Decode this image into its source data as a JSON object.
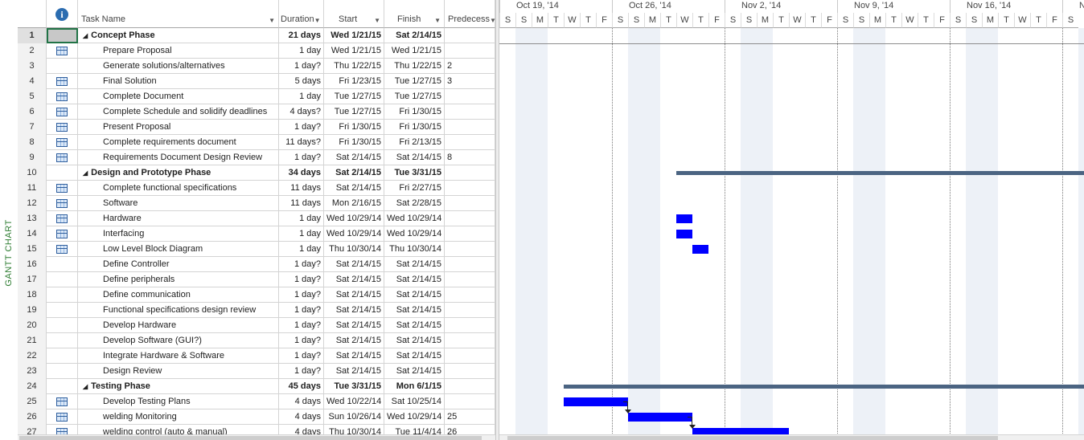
{
  "view_label": "GANTT CHART",
  "columns": {
    "info_icon": "information-icon",
    "task_name": "Task Name",
    "duration": "Duration",
    "start": "Start",
    "finish": "Finish",
    "predecessors": "Predecess"
  },
  "rows": [
    {
      "id": "1",
      "icon": "",
      "name": "Concept Phase",
      "duration": "21 days",
      "start": "Wed 1/21/15",
      "finish": "Sat 2/14/15",
      "pred": "",
      "summary": true
    },
    {
      "id": "2",
      "icon": "calendar-task-icon",
      "name": "Prepare Proposal",
      "duration": "1 day",
      "start": "Wed 1/21/15",
      "finish": "Wed 1/21/15",
      "pred": "",
      "summary": false
    },
    {
      "id": "3",
      "icon": "",
      "name": "Generate solutions/alternatives",
      "duration": "1 day?",
      "start": "Thu 1/22/15",
      "finish": "Thu 1/22/15",
      "pred": "2",
      "summary": false
    },
    {
      "id": "4",
      "icon": "calendar-task-icon",
      "name": "Final Solution",
      "duration": "5 days",
      "start": "Fri 1/23/15",
      "finish": "Tue 1/27/15",
      "pred": "3",
      "summary": false
    },
    {
      "id": "5",
      "icon": "calendar-task-icon",
      "name": "Complete Document",
      "duration": "1 day",
      "start": "Tue 1/27/15",
      "finish": "Tue 1/27/15",
      "pred": "",
      "summary": false
    },
    {
      "id": "6",
      "icon": "calendar-task-icon",
      "name": "Complete Schedule and solidify deadlines",
      "duration": "4 days?",
      "start": "Tue 1/27/15",
      "finish": "Fri 1/30/15",
      "pred": "",
      "summary": false
    },
    {
      "id": "7",
      "icon": "calendar-task-icon",
      "name": "Present Proposal",
      "duration": "1 day?",
      "start": "Fri 1/30/15",
      "finish": "Fri 1/30/15",
      "pred": "",
      "summary": false
    },
    {
      "id": "8",
      "icon": "calendar-task-icon",
      "name": "Complete requirements document",
      "duration": "11 days?",
      "start": "Fri 1/30/15",
      "finish": "Fri 2/13/15",
      "pred": "",
      "summary": false
    },
    {
      "id": "9",
      "icon": "calendar-task-icon",
      "name": "Requirements Document Design Review",
      "duration": "1 day?",
      "start": "Sat 2/14/15",
      "finish": "Sat 2/14/15",
      "pred": "8",
      "summary": false
    },
    {
      "id": "10",
      "icon": "",
      "name": "Design and Prototype Phase",
      "duration": "34 days",
      "start": "Sat 2/14/15",
      "finish": "Tue 3/31/15",
      "pred": "",
      "summary": true
    },
    {
      "id": "11",
      "icon": "calendar-task-icon",
      "name": "Complete functional specifications",
      "duration": "11 days",
      "start": "Sat 2/14/15",
      "finish": "Fri 2/27/15",
      "pred": "",
      "summary": false
    },
    {
      "id": "12",
      "icon": "calendar-task-icon",
      "name": "Software",
      "duration": "11 days",
      "start": "Mon 2/16/15",
      "finish": "Sat 2/28/15",
      "pred": "",
      "summary": false
    },
    {
      "id": "13",
      "icon": "calendar-task-icon",
      "name": "Hardware",
      "duration": "1 day",
      "start": "Wed 10/29/14",
      "finish": "Wed 10/29/14",
      "pred": "",
      "summary": false
    },
    {
      "id": "14",
      "icon": "calendar-task-icon",
      "name": "Interfacing",
      "duration": "1 day",
      "start": "Wed 10/29/14",
      "finish": "Wed 10/29/14",
      "pred": "",
      "summary": false
    },
    {
      "id": "15",
      "icon": "calendar-task-icon",
      "name": "Low Level Block Diagram",
      "duration": "1 day",
      "start": "Thu 10/30/14",
      "finish": "Thu 10/30/14",
      "pred": "",
      "summary": false
    },
    {
      "id": "16",
      "icon": "",
      "name": "Define Controller",
      "duration": "1 day?",
      "start": "Sat 2/14/15",
      "finish": "Sat 2/14/15",
      "pred": "",
      "summary": false
    },
    {
      "id": "17",
      "icon": "",
      "name": "Define peripherals",
      "duration": "1 day?",
      "start": "Sat 2/14/15",
      "finish": "Sat 2/14/15",
      "pred": "",
      "summary": false
    },
    {
      "id": "18",
      "icon": "",
      "name": "Define communication",
      "duration": "1 day?",
      "start": "Sat 2/14/15",
      "finish": "Sat 2/14/15",
      "pred": "",
      "summary": false
    },
    {
      "id": "19",
      "icon": "",
      "name": "Functional specifications design review",
      "duration": "1 day?",
      "start": "Sat 2/14/15",
      "finish": "Sat 2/14/15",
      "pred": "",
      "summary": false
    },
    {
      "id": "20",
      "icon": "",
      "name": "Develop Hardware",
      "duration": "1 day?",
      "start": "Sat 2/14/15",
      "finish": "Sat 2/14/15",
      "pred": "",
      "summary": false
    },
    {
      "id": "21",
      "icon": "",
      "name": "Develop Software (GUI?)",
      "duration": "1 day?",
      "start": "Sat 2/14/15",
      "finish": "Sat 2/14/15",
      "pred": "",
      "summary": false
    },
    {
      "id": "22",
      "icon": "",
      "name": "Integrate Hardware & Software",
      "duration": "1 day?",
      "start": "Sat 2/14/15",
      "finish": "Sat 2/14/15",
      "pred": "",
      "summary": false
    },
    {
      "id": "23",
      "icon": "",
      "name": "Design Review",
      "duration": "1 day?",
      "start": "Sat 2/14/15",
      "finish": "Sat 2/14/15",
      "pred": "",
      "summary": false
    },
    {
      "id": "24",
      "icon": "",
      "name": "Testing Phase",
      "duration": "45 days",
      "start": "Tue 3/31/15",
      "finish": "Mon 6/1/15",
      "pred": "",
      "summary": true
    },
    {
      "id": "25",
      "icon": "calendar-task-icon",
      "name": "Develop Testing Plans",
      "duration": "4 days",
      "start": "Wed 10/22/14",
      "finish": "Sat 10/25/14",
      "pred": "",
      "summary": false
    },
    {
      "id": "26",
      "icon": "calendar-task-icon",
      "name": "welding Monitoring",
      "duration": "4 days",
      "start": "Sun 10/26/14",
      "finish": "Wed 10/29/14",
      "pred": "25",
      "summary": false
    },
    {
      "id": "27",
      "icon": "calendar-task-icon",
      "name": "welding control (auto & manual)",
      "duration": "4 days",
      "start": "Thu 10/30/14",
      "finish": "Tue 11/4/14",
      "pred": "26",
      "summary": false
    }
  ],
  "timescale": {
    "weeks": [
      "Oct 19, '14",
      "Oct 26, '14",
      "Nov 2, '14",
      "Nov 9, '14",
      "Nov 16, '14",
      "N"
    ],
    "days": [
      "S",
      "S",
      "M",
      "T",
      "W",
      "T",
      "F",
      "S",
      "S",
      "M",
      "T",
      "W",
      "T",
      "F",
      "S",
      "S",
      "M",
      "T",
      "W",
      "T",
      "F",
      "S",
      "S",
      "M",
      "T",
      "W",
      "T",
      "F",
      "S",
      "S",
      "M",
      "T",
      "W",
      "T",
      "F",
      "S"
    ]
  },
  "gantt": {
    "first_visible_day": "Sat 10/18/14",
    "bars": [
      {
        "row": 10,
        "type": "summary",
        "start_day": 11,
        "end_day": "beyond"
      },
      {
        "row": 13,
        "type": "task",
        "start_day": 11,
        "days": 1
      },
      {
        "row": 14,
        "type": "task",
        "start_day": 11,
        "days": 1
      },
      {
        "row": 15,
        "type": "task",
        "start_day": 12,
        "days": 1
      },
      {
        "row": 24,
        "type": "summary",
        "start_day": 4,
        "end_day": "beyond"
      },
      {
        "row": 25,
        "type": "task",
        "start_day": 4,
        "days": 4
      },
      {
        "row": 26,
        "type": "task",
        "start_day": 8,
        "days": 4
      },
      {
        "row": 27,
        "type": "task",
        "start_day": 12,
        "days": 6
      }
    ],
    "links": [
      {
        "from_row": 25,
        "to_row": 26
      },
      {
        "from_row": 26,
        "to_row": 27
      }
    ]
  },
  "colors": {
    "task_bar": "#0000ff",
    "summary_bar": "#4b6482",
    "view_label": "#2e7d32",
    "weekend_shade": "#edf1f7"
  }
}
